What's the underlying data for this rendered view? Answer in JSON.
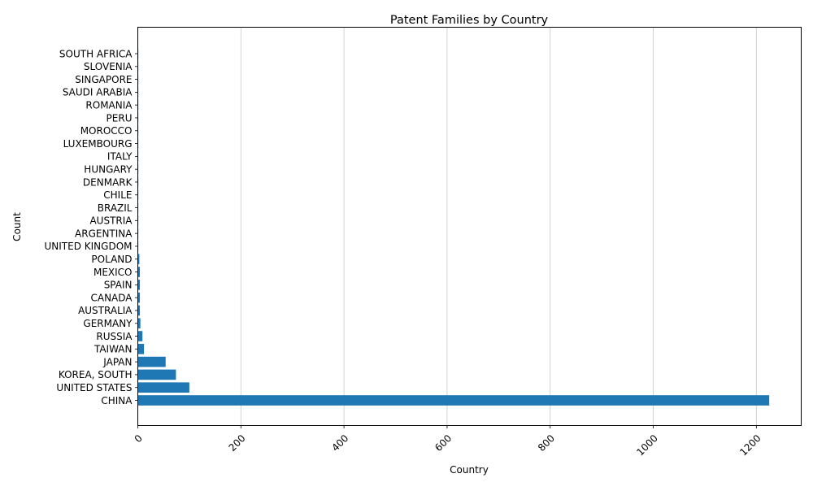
{
  "chart_data": {
    "type": "bar",
    "orientation": "horizontal",
    "title": "Patent Families by Country",
    "xlabel": "Country",
    "ylabel": "Count",
    "categories": [
      "CHINA",
      "UNITED STATES",
      "KOREA, SOUTH",
      "JAPAN",
      "TAIWAN",
      "RUSSIA",
      "GERMANY",
      "AUSTRALIA",
      "CANADA",
      "SPAIN",
      "MEXICO",
      "POLAND",
      "UNITED KINGDOM",
      "ARGENTINA",
      "AUSTRIA",
      "BRAZIL",
      "CHILE",
      "DENMARK",
      "HUNGARY",
      "ITALY",
      "LUXEMBOURG",
      "MOROCCO",
      "PERU",
      "ROMANIA",
      "SAUDI ARABIA",
      "SINGAPORE",
      "SLOVENIA",
      "SOUTH AFRICA"
    ],
    "values": [
      1225,
      100,
      74,
      54,
      12,
      9,
      5,
      4,
      4,
      4,
      4,
      3,
      1,
      1,
      1,
      1,
      1,
      1,
      1,
      1,
      1,
      1,
      1,
      1,
      1,
      1,
      1,
      1
    ],
    "xticks": [
      0,
      200,
      400,
      600,
      800,
      1000,
      1200
    ],
    "xlim": [
      0,
      1287
    ],
    "grid": "x",
    "bar_color": "#1f77b4"
  }
}
